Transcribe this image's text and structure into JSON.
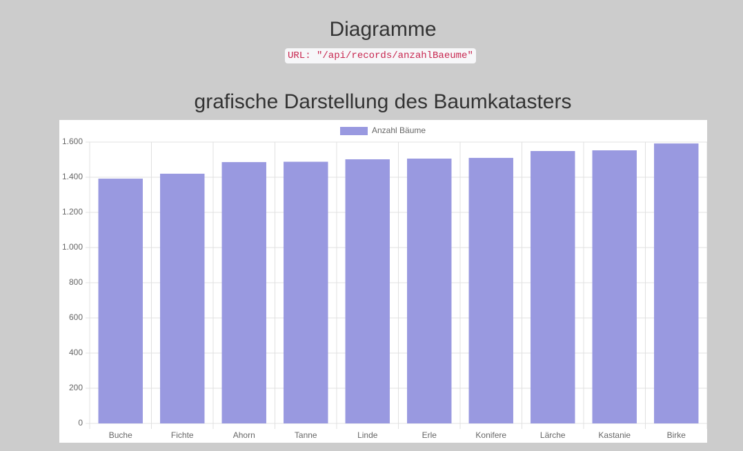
{
  "header": {
    "title": "Diagramme",
    "url": "URL: \"/api/records/anzahlBaeume\""
  },
  "chart_data": {
    "type": "bar",
    "title": "grafische Darstellung des Baumkatasters",
    "categories": [
      "Buche",
      "Fichte",
      "Ahorn",
      "Tanne",
      "Linde",
      "Erle",
      "Konifere",
      "Lärche",
      "Kastanie",
      "Birke"
    ],
    "series": [
      {
        "name": "Anzahl Bäume",
        "color": "#9999e0",
        "values": [
          1392,
          1420,
          1486,
          1488,
          1502,
          1506,
          1510,
          1549,
          1553,
          1592
        ]
      }
    ],
    "ylim": [
      0,
      1600
    ],
    "yticks": [
      0,
      200,
      400,
      600,
      800,
      {
        "value": 1000,
        "label": "1.000"
      },
      {
        "value": 1200,
        "label": "1.200"
      },
      {
        "value": 1400,
        "label": "1.400"
      },
      {
        "value": 1600,
        "label": "1.600"
      }
    ],
    "grid": true,
    "legend": "top"
  }
}
